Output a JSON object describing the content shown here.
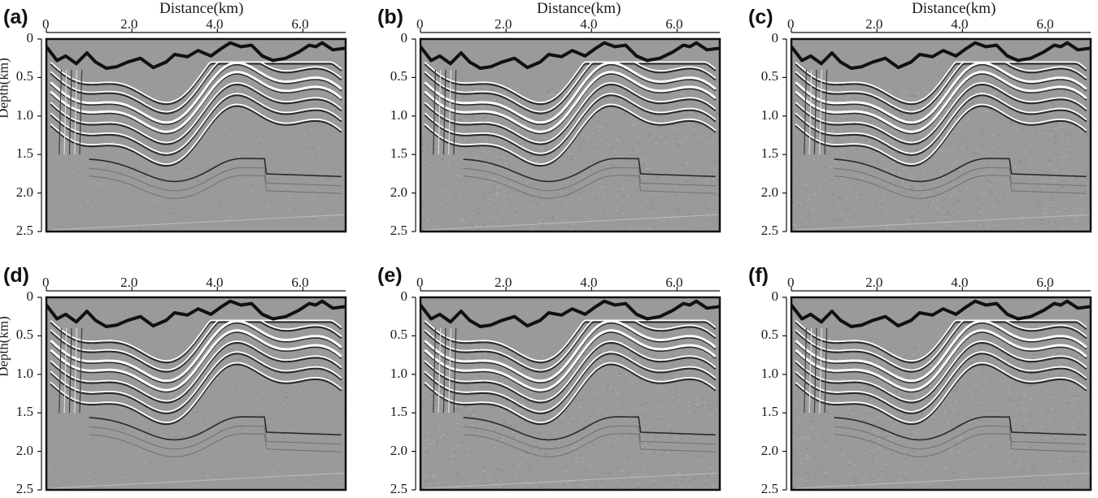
{
  "figure": {
    "panels": [
      {
        "label": "(a)",
        "xtitle": "Distance(km)",
        "ytitle": "Depth(km)",
        "noise": "low"
      },
      {
        "label": "(b)",
        "xtitle": "Distance(km)",
        "ytitle": "",
        "noise": "medium"
      },
      {
        "label": "(c)",
        "xtitle": "Distance(km)",
        "ytitle": "",
        "noise": "medium"
      },
      {
        "label": "(d)",
        "xtitle": "",
        "ytitle": "Depth(km)",
        "noise": "low"
      },
      {
        "label": "(e)",
        "xtitle": "",
        "ytitle": "",
        "noise": "medium"
      },
      {
        "label": "(f)",
        "xtitle": "",
        "ytitle": "",
        "noise": "medium"
      }
    ],
    "x_ticks": [
      "0",
      "2.0",
      "4.0",
      "6.0"
    ],
    "y_ticks": [
      "0",
      "0.5",
      "1.0",
      "1.5",
      "2.0",
      "2.5"
    ],
    "x_range_km": [
      0,
      7.0
    ],
    "y_range_km": [
      0,
      2.5
    ],
    "colors": {
      "background": "#9a9a9a",
      "reflector_light": "#ffffff",
      "reflector_dark": "#2a2a2a",
      "topography": "#111111"
    }
  }
}
